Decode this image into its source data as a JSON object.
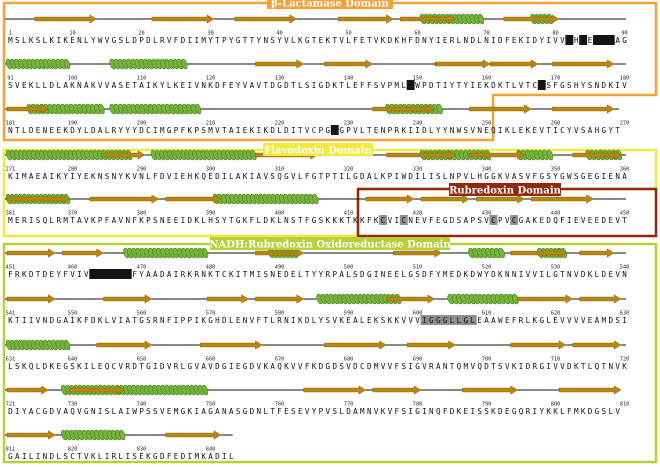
{
  "colors": {
    "beta_lactamase": "#f5a13a",
    "flavodoxin": "#f0ea3c",
    "rubredoxin": "#8e2a10",
    "nadh_reductase": "#b8cf3c",
    "helix": "#74b43a",
    "strand": "#b8860b",
    "highlight_black": "#151515",
    "highlight_gray": "#8f8f8f"
  },
  "domains": [
    {
      "id": "beta-lactamase",
      "title": "β-Lactamase Domain"
    },
    {
      "id": "flavodoxin",
      "title": "Flavodoxin Domain"
    },
    {
      "id": "rubredoxin",
      "title": "Rubredoxin Domain"
    },
    {
      "id": "nadh-rubredoxin-oxidoreductase",
      "title": "NADH:Rubredoxin Oxidoreductase Domain"
    }
  ],
  "rows": [
    {
      "start": 1,
      "sequence": "MSLKSLKIKENLYWVGSLDPDLRVFDIIMYTPYGTTYNSYVLKGTEKTVLFETVKDKHFDNYIERLNDLNIDFEKIDYIVVSHTEPDHAG",
      "numbers": [
        10,
        20,
        30,
        40,
        50,
        60,
        70,
        80,
        90
      ],
      "strands": [
        [
          4,
          12
        ],
        [
          21,
          29
        ],
        [
          33,
          41
        ],
        [
          48,
          55
        ],
        [
          57,
          64
        ],
        [
          72,
          79
        ]
      ],
      "helices": [
        [
          60,
          68
        ],
        [
          76,
          78
        ]
      ],
      "black": [
        [
          81,
          81
        ],
        [
          83,
          83
        ],
        [
          85,
          87
        ]
      ],
      "gray": []
    },
    {
      "start": 91,
      "sequence": "SVEKLLDLAKNAKVVASETAIKYLKEIVNKDFEYVAVTDGDTLSIGDKTLEFFSVPMLHWPDTIYTYIEKDKTLVTCDSFGSHYSNDKIV",
      "numbers": [
        100,
        110,
        120,
        130,
        140,
        150,
        160,
        170,
        180
      ],
      "strands": [
        [
          36,
          42
        ],
        [
          46,
          52
        ],
        [
          62,
          69
        ],
        [
          70,
          76
        ],
        [
          79,
          87
        ]
      ],
      "helices": [
        [
          0,
          8
        ],
        [
          15,
          25
        ]
      ],
      "black": [
        [
          58,
          58
        ],
        [
          77,
          77
        ]
      ],
      "gray": []
    },
    {
      "start": 181,
      "sequence": "NTLDENEEKDYLDALRYYYDCIMGPFKPSMVTAIEKIKDLDITVCPGHGPVLTENPRKIIDLYYNWSVNEQIKLEKEVTICYVSAHGYT",
      "numbers": [
        190,
        200,
        210,
        220,
        230,
        240,
        250,
        260,
        270
      ],
      "strands": [
        [
          0,
          5
        ],
        [
          53,
          61
        ],
        [
          67,
          75
        ],
        [
          79,
          87
        ]
      ],
      "helices": [
        [
          3,
          13
        ],
        [
          15,
          27
        ],
        [
          55,
          62
        ]
      ],
      "black": [
        [
          47,
          47
        ]
      ],
      "gray": []
    },
    {
      "start": 271,
      "sequence": "KIMAEAIKYIYEKNSNYKVNLFDVIEHKQEDILAKIAVSQGVLFGTPTILGDALKPIWDILISLNPVLHGGKVASVFGSYGWSGEGIENA",
      "numbers": [
        280,
        290,
        300,
        310,
        320,
        330,
        340,
        350,
        360
      ],
      "strands": [
        [
          14,
          19
        ],
        [
          36,
          44
        ],
        [
          55,
          64
        ],
        [
          67,
          74
        ],
        [
          82,
          88
        ]
      ],
      "helices": [
        [
          0,
          17
        ],
        [
          21,
          35
        ],
        [
          60,
          69
        ],
        [
          74,
          78
        ],
        [
          84,
          88
        ]
      ],
      "black": [],
      "gray": []
    },
    {
      "start": 361,
      "sequence": "MERISQLRMTAVKPFAVNFKPSNEEIDKLHSYTGKFLDKLNSTFGSKKKTKKFKCVICNEVFEGDSAPSVCPVCGAKEDQFIEVEEDEVT",
      "numbers": [
        370,
        380,
        390,
        400,
        410,
        420,
        430,
        440,
        450
      ],
      "strands": [
        [
          0,
          8
        ],
        [
          12,
          21
        ],
        [
          23,
          30
        ],
        [
          52,
          58
        ],
        [
          60,
          66
        ],
        [
          68,
          74
        ],
        [
          76,
          84
        ]
      ],
      "helices": [
        [
          0,
          8
        ],
        [
          30,
          44
        ]
      ],
      "black": [],
      "gray": [
        [
          54,
          54
        ],
        [
          57,
          57
        ],
        [
          70,
          70
        ],
        [
          73,
          73
        ]
      ]
    },
    {
      "start": 451,
      "sequence": "FRKDTDEYFVIVGNGAAGFYAADAIRKRNKTCKITMISNEDELTYYRPALSDGINEELGSDFYMEDKDWYDKNNIVVILGTNVDKLDEVN",
      "numbers": [
        460,
        470,
        480,
        490,
        500,
        510,
        520,
        530,
        540
      ],
      "strands": [
        [
          0,
          6
        ],
        [
          8,
          13
        ],
        [
          36,
          42
        ],
        [
          56,
          62
        ],
        [
          73,
          80
        ],
        [
          83,
          87
        ]
      ],
      "helices": [
        [
          17,
          28
        ],
        [
          38,
          41
        ],
        [
          67,
          71
        ],
        [
          77,
          80
        ]
      ],
      "black": [
        [
          12,
          17
        ]
      ],
      "gray": []
    },
    {
      "start": 541,
      "sequence": "KTIIVNDGAIKFDKLVIATGSRNFIPPIKGHDLENVFTLRNIKDLYSVKEALEKSKKVVVIGGGLLGLEAAWEFRLKGLEVVVVEAMDSI",
      "numbers": [
        550,
        560,
        570,
        580,
        590,
        600,
        610,
        620,
        630
      ],
      "strands": [
        [
          0,
          6
        ],
        [
          14,
          20
        ],
        [
          29,
          34
        ],
        [
          36,
          42
        ],
        [
          55,
          61
        ],
        [
          74,
          81
        ],
        [
          83,
          88
        ]
      ],
      "helices": [
        [
          45,
          56
        ],
        [
          64,
          73
        ]
      ],
      "black": [],
      "gray": [
        [
          60,
          67
        ]
      ]
    },
    {
      "start": 631,
      "sequence": "LSKQLDKEGSKILEQCVRDTGIDVRLGVAVDGIEGDVKAQKVVFKDGDSVDCDMVVFSIGVRANTQMVQDTSVKIDRGIVVDKTLQTNVK",
      "numbers": [
        640,
        650,
        660,
        670,
        680,
        690,
        700,
        710,
        720
      ],
      "strands": [
        [
          13,
          20
        ],
        [
          28,
          36
        ],
        [
          46,
          54
        ],
        [
          58,
          64
        ],
        [
          73,
          80
        ],
        [
          82,
          88
        ]
      ],
      "helices": [
        [
          0,
          8
        ]
      ],
      "black": [],
      "gray": []
    },
    {
      "start": 721,
      "sequence": "DIYACGDVAQVGNISLAIWPSSVEMGKIAGANASGDNLTFESEVYPVSLDAMNVKVFSIGINQFDKEISSKDEGQRIYKKLFMKDGSLV",
      "numbers": [
        730,
        740,
        750,
        760,
        770,
        780,
        790,
        800,
        810
      ],
      "strands": [
        [
          0,
          5
        ],
        [
          9,
          16
        ],
        [
          43,
          51
        ],
        [
          53,
          59
        ],
        [
          66,
          73
        ],
        [
          80,
          88
        ]
      ],
      "helices": [
        [
          8,
          28
        ]
      ],
      "black": [],
      "gray": []
    },
    {
      "start": 811,
      "sequence": "GAILINDLSCTVKLIRLISEKGDFEDIMKADIL",
      "numbers": [
        820,
        830,
        840
      ],
      "strands": [
        [
          0,
          6
        ],
        [
          23,
          30
        ]
      ],
      "helices": [
        [
          8,
          16
        ]
      ],
      "black": [],
      "gray": []
    }
  ]
}
